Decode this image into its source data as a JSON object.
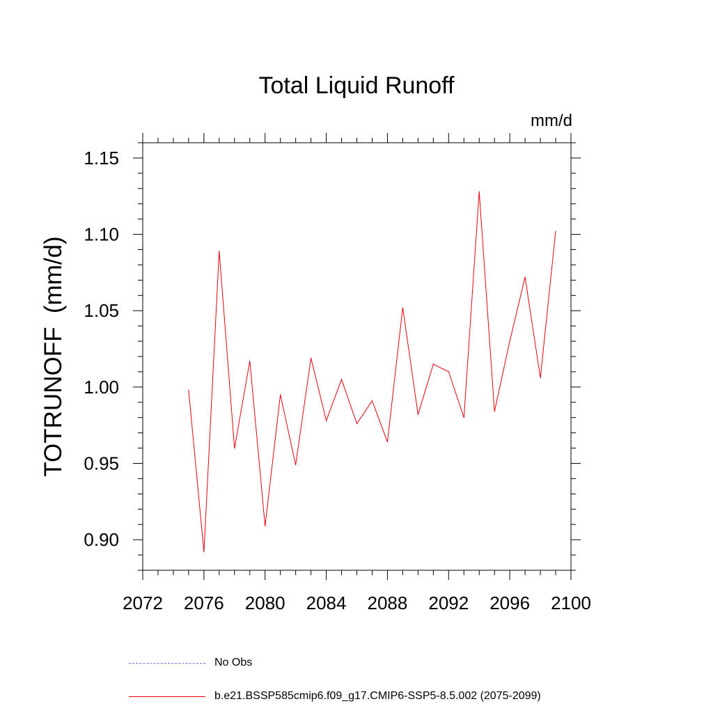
{
  "chart_data": {
    "type": "line",
    "title": "Total Liquid Runoff",
    "units_label": "mm/d",
    "ylabel": "TOTRUNOFF  (mm/d)",
    "xlabel": "",
    "xlim": [
      2072,
      2100
    ],
    "ylim": [
      0.88,
      1.16
    ],
    "x_ticks": [
      2072,
      2076,
      2080,
      2084,
      2088,
      2092,
      2096,
      2100
    ],
    "y_ticks": [
      0.9,
      0.95,
      1.0,
      1.05,
      1.1,
      1.15
    ],
    "y_tick_labels": [
      "0.90",
      "0.95",
      "1.00",
      "1.05",
      "1.10",
      "1.15"
    ],
    "series": [
      {
        "name": "b.e21.BSSP585cmip6.f09_g17.CMIP6-SSP5-8.5.002 (2075-2099)",
        "color": "#e8000b",
        "x": [
          2075,
          2076,
          2077,
          2078,
          2079,
          2080,
          2081,
          2082,
          2083,
          2084,
          2085,
          2086,
          2087,
          2088,
          2089,
          2090,
          2091,
          2092,
          2093,
          2094,
          2095,
          2096,
          2097,
          2098,
          2099
        ],
        "values": [
          0.998,
          0.892,
          1.089,
          0.96,
          1.017,
          0.909,
          0.995,
          0.949,
          1.019,
          0.978,
          1.005,
          0.976,
          0.991,
          0.964,
          1.052,
          0.982,
          1.015,
          1.01,
          0.98,
          1.128,
          0.984,
          1.03,
          1.072,
          1.006,
          1.102
        ]
      }
    ],
    "legend": [
      {
        "label": "No Obs",
        "color": "#6f6fd6",
        "style": "dashed"
      },
      {
        "label": "b.e21.BSSP585cmip6.f09_g17.CMIP6-SSP5-8.5.002 (2075-2099)",
        "color": "#e8000b",
        "style": "solid"
      }
    ],
    "grid": false,
    "legend_placement": "bottom"
  }
}
